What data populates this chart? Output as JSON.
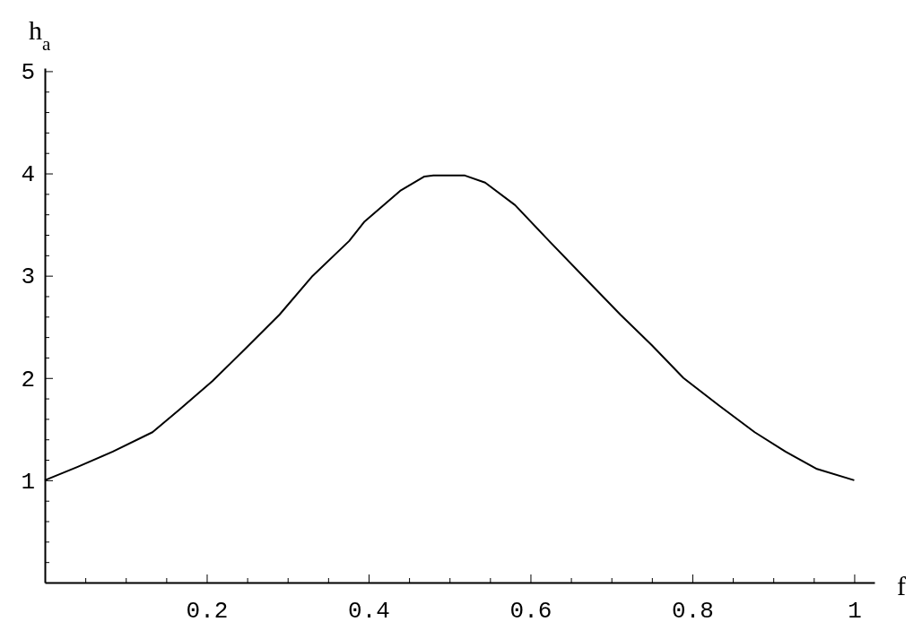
{
  "chart_data": {
    "type": "line",
    "xlabel": "f",
    "ylabel": "h$_{a}$",
    "x": [
      0,
      0.04,
      0.084,
      0.133,
      0.166,
      0.207,
      0.247,
      0.29,
      0.331,
      0.376,
      0.395,
      0.439,
      0.469,
      0.48,
      0.5,
      0.519,
      0.544,
      0.581,
      0.623,
      0.667,
      0.711,
      0.75,
      0.789,
      0.833,
      0.877,
      0.915,
      0.954,
      1
    ],
    "series": [
      {
        "color": "#000000",
        "values": [
          1,
          1.13,
          1.28,
          1.47,
          1.69,
          1.97,
          2.28,
          2.62,
          3.0,
          3.34,
          3.53,
          3.83,
          3.97,
          3.98,
          3.98,
          3.98,
          3.91,
          3.69,
          3.34,
          2.98,
          2.62,
          2.32,
          2.0,
          1.73,
          1.47,
          1.28,
          1.11,
          1.0
        ]
      }
    ],
    "xlim": [
      0,
      1.025
    ],
    "ylim": [
      0,
      5.03
    ],
    "xticks": [
      {
        "value": 0.05,
        "label": null
      },
      {
        "value": 0.1,
        "label": null
      },
      {
        "value": 0.15,
        "label": null
      },
      0.2,
      {
        "value": 0.25,
        "label": null
      },
      {
        "value": 0.3,
        "label": null
      },
      {
        "value": 0.35,
        "label": null
      },
      0.4,
      {
        "value": 0.45,
        "label": null
      },
      {
        "value": 0.5,
        "label": null
      },
      {
        "value": 0.55,
        "label": null
      },
      0.6,
      {
        "value": 0.65,
        "label": null
      },
      {
        "value": 0.7,
        "label": null
      },
      {
        "value": 0.75,
        "label": null
      },
      0.8,
      {
        "value": 0.85,
        "label": null
      },
      {
        "value": 0.9,
        "label": null
      },
      {
        "value": 0.95,
        "label": null
      },
      1
    ],
    "yticks": [
      {
        "value": 0.2,
        "label": null
      },
      {
        "value": 0.4,
        "label": null
      },
      {
        "value": 0.6,
        "label": null
      },
      {
        "value": 0.8,
        "label": null
      },
      1,
      {
        "value": 1.2,
        "label": null
      },
      {
        "value": 1.4,
        "label": null
      },
      {
        "value": 1.6,
        "label": null
      },
      {
        "value": 1.8,
        "label": null
      },
      2,
      {
        "value": 2.2,
        "label": null
      },
      {
        "value": 2.4,
        "label": null
      },
      {
        "value": 2.6,
        "label": null
      },
      {
        "value": 2.8,
        "label": null
      },
      3,
      {
        "value": 3.2,
        "label": null
      },
      {
        "value": 3.4,
        "label": null
      },
      {
        "value": 3.6,
        "label": null
      },
      {
        "value": 3.8,
        "label": null
      },
      4,
      {
        "value": 4.2,
        "label": null
      },
      {
        "value": 4.4,
        "label": null
      },
      {
        "value": 4.6,
        "label": null
      },
      {
        "value": 4.8,
        "label": null
      },
      5
    ],
    "grid": false,
    "marker": "none",
    "line_style": "solid"
  }
}
